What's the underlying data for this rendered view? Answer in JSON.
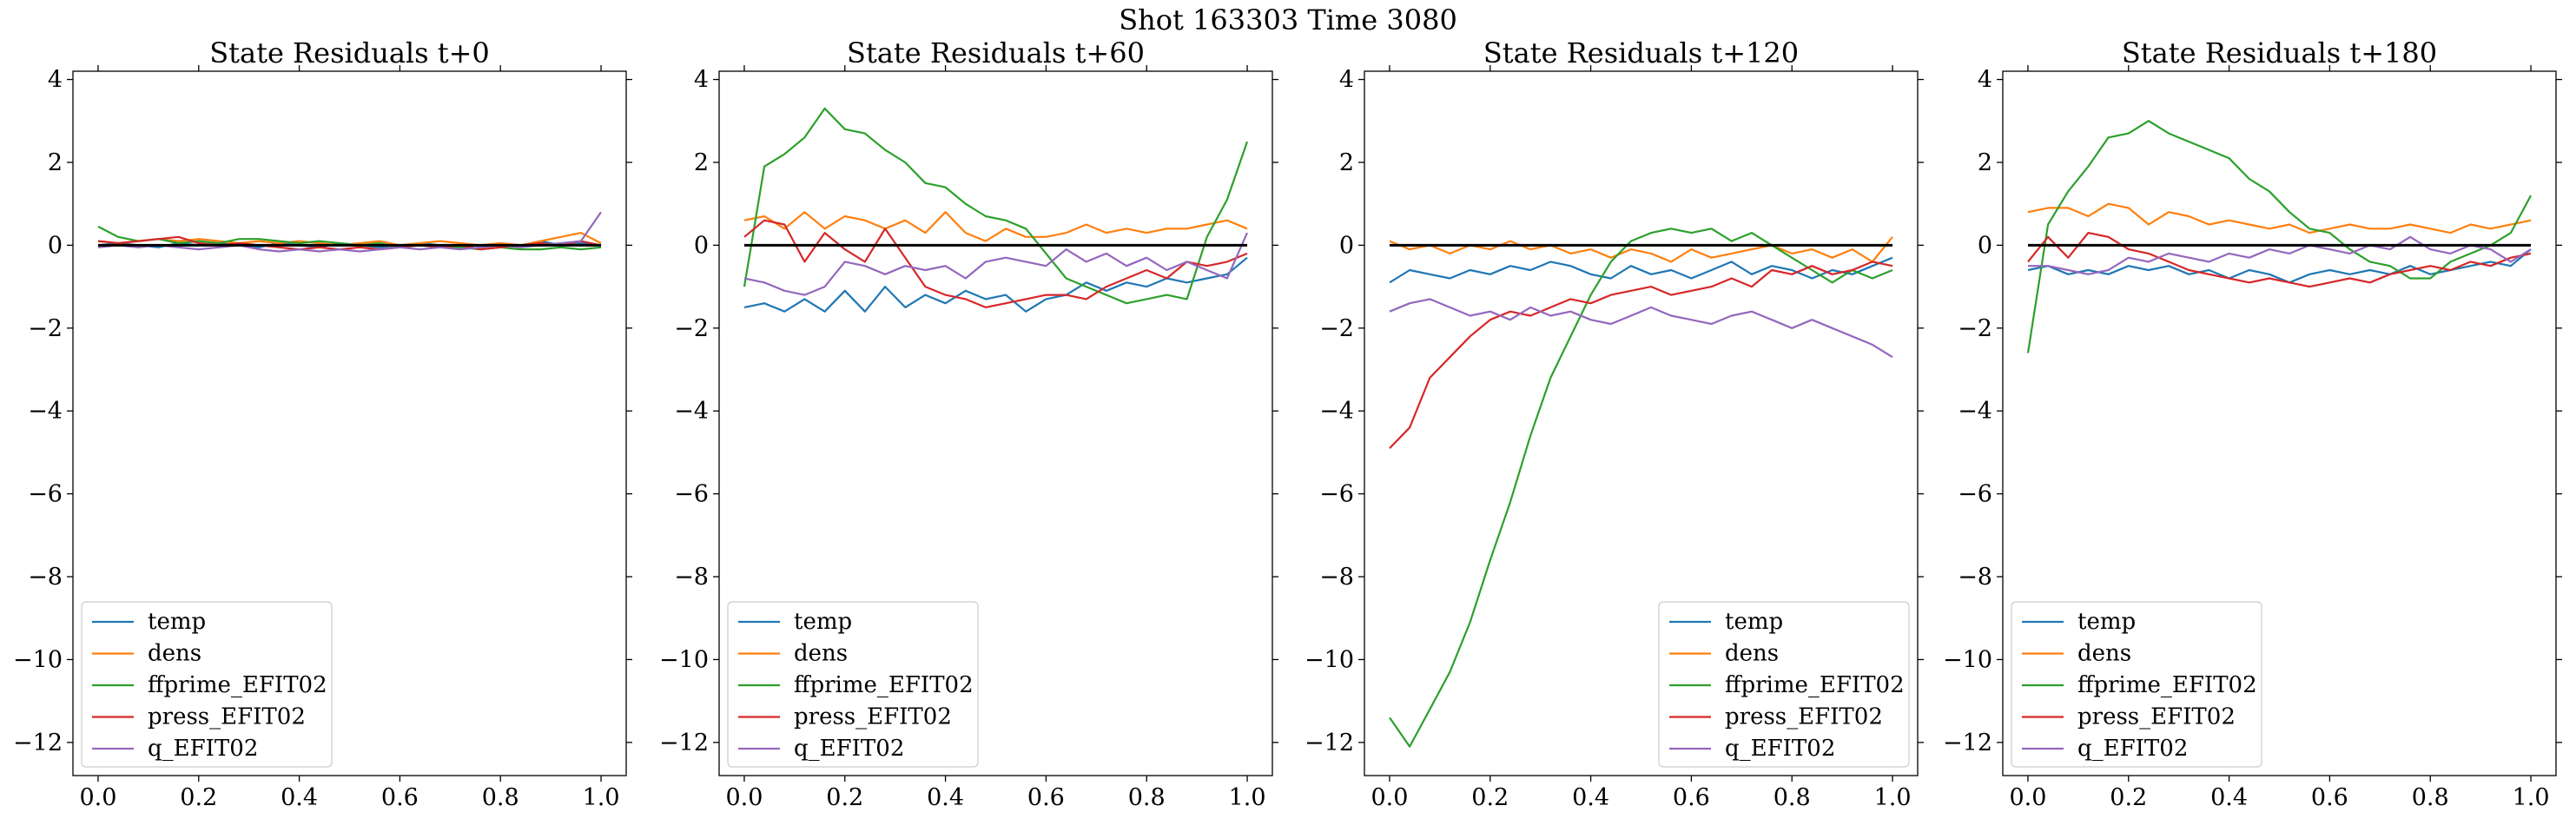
{
  "figure": {
    "suptitle": "Shot 163303   Time 3080"
  },
  "chart_data": [
    {
      "type": "line",
      "title": "State Residuals t+0",
      "xlim": [
        -0.05,
        1.05
      ],
      "ylim": [
        -12.8,
        4.2
      ],
      "xticks": [
        0.0,
        0.2,
        0.4,
        0.6,
        0.8,
        1.0
      ],
      "xtick_labels": [
        "0.0",
        "0.2",
        "0.4",
        "0.6",
        "0.8",
        "1.0"
      ],
      "yticks": [
        4,
        2,
        0,
        -2,
        -4,
        -6,
        -8,
        -10,
        -12
      ],
      "ytick_labels": [
        "4",
        "2",
        "0",
        "−2",
        "−4",
        "−6",
        "−8",
        "−10",
        "−12"
      ],
      "reference_line": {
        "y": 0,
        "color": "#000000"
      },
      "legend_position": "lower-left",
      "x": [
        0.0,
        0.04,
        0.08,
        0.12,
        0.16,
        0.2,
        0.24,
        0.28,
        0.32,
        0.36,
        0.4,
        0.44,
        0.48,
        0.52,
        0.56,
        0.6,
        0.64,
        0.68,
        0.72,
        0.76,
        0.8,
        0.84,
        0.88,
        0.92,
        0.96,
        1.0
      ],
      "series": [
        {
          "name": "temp",
          "color": "#1f77b4",
          "values": [
            0.0,
            0.05,
            0.0,
            -0.05,
            0.05,
            0.0,
            0.05,
            0.0,
            -0.05,
            0.05,
            0.0,
            -0.05,
            0.05,
            0.0,
            -0.05,
            0.0,
            0.05,
            0.0,
            -0.05,
            0.0,
            0.05,
            0.0,
            0.1,
            0.0,
            0.05,
            0.0
          ]
        },
        {
          "name": "dens",
          "color": "#ff7f0e",
          "values": [
            0.1,
            0.05,
            0.1,
            0.15,
            0.1,
            0.15,
            0.1,
            0.05,
            0.1,
            0.05,
            0.1,
            0.05,
            0.0,
            0.05,
            0.1,
            0.0,
            0.05,
            0.1,
            0.05,
            0.0,
            0.05,
            0.0,
            0.1,
            0.2,
            0.3,
            0.05
          ]
        },
        {
          "name": "ffprime_EFIT02",
          "color": "#2ca02c",
          "values": [
            0.45,
            0.2,
            0.1,
            0.15,
            0.05,
            0.1,
            0.05,
            0.15,
            0.15,
            0.1,
            0.05,
            0.1,
            0.05,
            0.0,
            0.05,
            -0.05,
            0.0,
            -0.05,
            -0.05,
            -0.1,
            -0.05,
            -0.1,
            -0.1,
            -0.05,
            -0.1,
            -0.05
          ]
        },
        {
          "name": "press_EFIT02",
          "color": "#d62728",
          "values": [
            0.1,
            0.05,
            0.1,
            0.15,
            0.2,
            0.05,
            0.0,
            0.05,
            0.0,
            -0.05,
            -0.1,
            -0.05,
            -0.1,
            -0.05,
            -0.1,
            -0.05,
            0.0,
            -0.05,
            0.0,
            -0.1,
            -0.05,
            0.0,
            0.05,
            0.0,
            0.1,
            0.0
          ]
        },
        {
          "name": "q_EFIT02",
          "color": "#9467bd",
          "values": [
            -0.05,
            0.0,
            -0.05,
            0.0,
            -0.05,
            -0.1,
            -0.05,
            0.0,
            -0.1,
            -0.15,
            -0.1,
            -0.15,
            -0.1,
            -0.15,
            -0.1,
            -0.05,
            -0.1,
            -0.05,
            -0.1,
            -0.05,
            0.0,
            -0.05,
            0.0,
            0.05,
            0.1,
            0.8
          ]
        }
      ]
    },
    {
      "type": "line",
      "title": "State Residuals t+60",
      "xlim": [
        -0.05,
        1.05
      ],
      "ylim": [
        -12.8,
        4.2
      ],
      "xticks": [
        0.0,
        0.2,
        0.4,
        0.6,
        0.8,
        1.0
      ],
      "xtick_labels": [
        "0.0",
        "0.2",
        "0.4",
        "0.6",
        "0.8",
        "1.0"
      ],
      "yticks": [
        4,
        2,
        0,
        -2,
        -4,
        -6,
        -8,
        -10,
        -12
      ],
      "ytick_labels": [
        "4",
        "2",
        "0",
        "−2",
        "−4",
        "−6",
        "−8",
        "−10",
        "−12"
      ],
      "reference_line": {
        "y": 0,
        "color": "#000000"
      },
      "legend_position": "lower-left",
      "x": [
        0.0,
        0.04,
        0.08,
        0.12,
        0.16,
        0.2,
        0.24,
        0.28,
        0.32,
        0.36,
        0.4,
        0.44,
        0.48,
        0.52,
        0.56,
        0.6,
        0.64,
        0.68,
        0.72,
        0.76,
        0.8,
        0.84,
        0.88,
        0.92,
        0.96,
        1.0
      ],
      "series": [
        {
          "name": "temp",
          "color": "#1f77b4",
          "values": [
            -1.5,
            -1.4,
            -1.6,
            -1.3,
            -1.6,
            -1.1,
            -1.6,
            -1.0,
            -1.5,
            -1.2,
            -1.4,
            -1.1,
            -1.3,
            -1.2,
            -1.6,
            -1.3,
            -1.2,
            -0.9,
            -1.1,
            -0.9,
            -1.0,
            -0.8,
            -0.9,
            -0.8,
            -0.7,
            -0.3
          ]
        },
        {
          "name": "dens",
          "color": "#ff7f0e",
          "values": [
            0.6,
            0.7,
            0.4,
            0.8,
            0.4,
            0.7,
            0.6,
            0.4,
            0.6,
            0.3,
            0.8,
            0.3,
            0.1,
            0.4,
            0.2,
            0.2,
            0.3,
            0.5,
            0.3,
            0.4,
            0.3,
            0.4,
            0.4,
            0.5,
            0.6,
            0.4
          ]
        },
        {
          "name": "ffprime_EFIT02",
          "color": "#2ca02c",
          "values": [
            -1.0,
            1.9,
            2.2,
            2.6,
            3.3,
            2.8,
            2.7,
            2.3,
            2.0,
            1.5,
            1.4,
            1.0,
            0.7,
            0.6,
            0.4,
            -0.2,
            -0.8,
            -1.0,
            -1.2,
            -1.4,
            -1.3,
            -1.2,
            -1.3,
            0.2,
            1.1,
            2.5
          ]
        },
        {
          "name": "press_EFIT02",
          "color": "#d62728",
          "values": [
            0.2,
            0.6,
            0.5,
            -0.4,
            0.3,
            -0.1,
            -0.4,
            0.4,
            -0.3,
            -1.0,
            -1.2,
            -1.3,
            -1.5,
            -1.4,
            -1.3,
            -1.2,
            -1.2,
            -1.3,
            -1.0,
            -0.8,
            -0.6,
            -0.8,
            -0.4,
            -0.5,
            -0.4,
            -0.2
          ]
        },
        {
          "name": "q_EFIT02",
          "color": "#9467bd",
          "values": [
            -0.8,
            -0.9,
            -1.1,
            -1.2,
            -1.0,
            -0.4,
            -0.5,
            -0.7,
            -0.5,
            -0.6,
            -0.5,
            -0.8,
            -0.4,
            -0.3,
            -0.4,
            -0.5,
            -0.1,
            -0.4,
            -0.2,
            -0.5,
            -0.3,
            -0.6,
            -0.4,
            -0.6,
            -0.8,
            0.3
          ]
        }
      ]
    },
    {
      "type": "line",
      "title": "State Residuals t+120",
      "xlim": [
        -0.05,
        1.05
      ],
      "ylim": [
        -12.8,
        4.2
      ],
      "xticks": [
        0.0,
        0.2,
        0.4,
        0.6,
        0.8,
        1.0
      ],
      "xtick_labels": [
        "0.0",
        "0.2",
        "0.4",
        "0.6",
        "0.8",
        "1.0"
      ],
      "yticks": [
        4,
        2,
        0,
        -2,
        -4,
        -6,
        -8,
        -10,
        -12
      ],
      "ytick_labels": [
        "4",
        "2",
        "0",
        "−2",
        "−4",
        "−6",
        "−8",
        "−10",
        "−12"
      ],
      "reference_line": {
        "y": 0,
        "color": "#000000"
      },
      "legend_position": "lower-right",
      "x": [
        0.0,
        0.04,
        0.08,
        0.12,
        0.16,
        0.2,
        0.24,
        0.28,
        0.32,
        0.36,
        0.4,
        0.44,
        0.48,
        0.52,
        0.56,
        0.6,
        0.64,
        0.68,
        0.72,
        0.76,
        0.8,
        0.84,
        0.88,
        0.92,
        0.96,
        1.0
      ],
      "series": [
        {
          "name": "temp",
          "color": "#1f77b4",
          "values": [
            -0.9,
            -0.6,
            -0.7,
            -0.8,
            -0.6,
            -0.7,
            -0.5,
            -0.6,
            -0.4,
            -0.5,
            -0.7,
            -0.8,
            -0.5,
            -0.7,
            -0.6,
            -0.8,
            -0.6,
            -0.4,
            -0.7,
            -0.5,
            -0.6,
            -0.8,
            -0.6,
            -0.7,
            -0.5,
            -0.3
          ]
        },
        {
          "name": "dens",
          "color": "#ff7f0e",
          "values": [
            0.1,
            -0.1,
            0.0,
            -0.2,
            0.0,
            -0.1,
            0.1,
            -0.1,
            0.0,
            -0.2,
            -0.1,
            -0.3,
            -0.1,
            -0.2,
            -0.4,
            -0.1,
            -0.3,
            -0.2,
            -0.1,
            0.0,
            -0.2,
            -0.1,
            -0.3,
            -0.1,
            -0.4,
            0.2
          ]
        },
        {
          "name": "ffprime_EFIT02",
          "color": "#2ca02c",
          "values": [
            -11.4,
            -12.1,
            -11.2,
            -10.3,
            -9.1,
            -7.6,
            -6.2,
            -4.6,
            -3.2,
            -2.2,
            -1.2,
            -0.4,
            0.1,
            0.3,
            0.4,
            0.3,
            0.4,
            0.1,
            0.3,
            0.0,
            -0.3,
            -0.6,
            -0.9,
            -0.6,
            -0.8,
            -0.6
          ]
        },
        {
          "name": "press_EFIT02",
          "color": "#d62728",
          "values": [
            -4.9,
            -4.4,
            -3.2,
            -2.7,
            -2.2,
            -1.8,
            -1.6,
            -1.7,
            -1.5,
            -1.3,
            -1.4,
            -1.2,
            -1.1,
            -1.0,
            -1.2,
            -1.1,
            -1.0,
            -0.8,
            -1.0,
            -0.6,
            -0.7,
            -0.5,
            -0.7,
            -0.6,
            -0.4,
            -0.5
          ]
        },
        {
          "name": "q_EFIT02",
          "color": "#9467bd",
          "values": [
            -1.6,
            -1.4,
            -1.3,
            -1.5,
            -1.7,
            -1.6,
            -1.8,
            -1.5,
            -1.7,
            -1.6,
            -1.8,
            -1.9,
            -1.7,
            -1.5,
            -1.7,
            -1.8,
            -1.9,
            -1.7,
            -1.6,
            -1.8,
            -2.0,
            -1.8,
            -2.0,
            -2.2,
            -2.4,
            -2.7
          ]
        }
      ]
    },
    {
      "type": "line",
      "title": "State Residuals t+180",
      "xlim": [
        -0.05,
        1.05
      ],
      "ylim": [
        -12.8,
        4.2
      ],
      "xticks": [
        0.0,
        0.2,
        0.4,
        0.6,
        0.8,
        1.0
      ],
      "xtick_labels": [
        "0.0",
        "0.2",
        "0.4",
        "0.6",
        "0.8",
        "1.0"
      ],
      "yticks": [
        4,
        2,
        0,
        -2,
        -4,
        -6,
        -8,
        -10,
        -12
      ],
      "ytick_labels": [
        "4",
        "2",
        "0",
        "−2",
        "−4",
        "−6",
        "−8",
        "−10",
        "−12"
      ],
      "reference_line": {
        "y": 0,
        "color": "#000000"
      },
      "legend_position": "lower-left",
      "x": [
        0.0,
        0.04,
        0.08,
        0.12,
        0.16,
        0.2,
        0.24,
        0.28,
        0.32,
        0.36,
        0.4,
        0.44,
        0.48,
        0.52,
        0.56,
        0.6,
        0.64,
        0.68,
        0.72,
        0.76,
        0.8,
        0.84,
        0.88,
        0.92,
        0.96,
        1.0
      ],
      "series": [
        {
          "name": "temp",
          "color": "#1f77b4",
          "values": [
            -0.6,
            -0.5,
            -0.7,
            -0.6,
            -0.7,
            -0.5,
            -0.6,
            -0.5,
            -0.7,
            -0.6,
            -0.8,
            -0.6,
            -0.7,
            -0.9,
            -0.7,
            -0.6,
            -0.7,
            -0.6,
            -0.7,
            -0.5,
            -0.7,
            -0.6,
            -0.5,
            -0.4,
            -0.5,
            -0.1
          ]
        },
        {
          "name": "dens",
          "color": "#ff7f0e",
          "values": [
            0.8,
            0.9,
            0.9,
            0.7,
            1.0,
            0.9,
            0.5,
            0.8,
            0.7,
            0.5,
            0.6,
            0.5,
            0.4,
            0.5,
            0.3,
            0.4,
            0.5,
            0.4,
            0.4,
            0.5,
            0.4,
            0.3,
            0.5,
            0.4,
            0.5,
            0.6
          ]
        },
        {
          "name": "ffprime_EFIT02",
          "color": "#2ca02c",
          "values": [
            -2.6,
            0.5,
            1.3,
            1.9,
            2.6,
            2.7,
            3.0,
            2.7,
            2.5,
            2.3,
            2.1,
            1.6,
            1.3,
            0.8,
            0.4,
            0.3,
            -0.1,
            -0.4,
            -0.5,
            -0.8,
            -0.8,
            -0.4,
            -0.2,
            0.0,
            0.3,
            1.2
          ]
        },
        {
          "name": "press_EFIT02",
          "color": "#d62728",
          "values": [
            -0.4,
            0.2,
            -0.3,
            0.3,
            0.2,
            -0.1,
            -0.2,
            -0.4,
            -0.6,
            -0.7,
            -0.8,
            -0.9,
            -0.8,
            -0.9,
            -1.0,
            -0.9,
            -0.8,
            -0.9,
            -0.7,
            -0.6,
            -0.5,
            -0.6,
            -0.4,
            -0.5,
            -0.3,
            -0.2
          ]
        },
        {
          "name": "q_EFIT02",
          "color": "#9467bd",
          "values": [
            -0.5,
            -0.5,
            -0.6,
            -0.7,
            -0.6,
            -0.3,
            -0.4,
            -0.2,
            -0.3,
            -0.4,
            -0.2,
            -0.3,
            -0.1,
            -0.2,
            0.0,
            -0.1,
            -0.2,
            0.0,
            -0.1,
            0.2,
            -0.1,
            -0.2,
            0.0,
            -0.1,
            -0.4,
            -0.1
          ]
        }
      ]
    }
  ]
}
